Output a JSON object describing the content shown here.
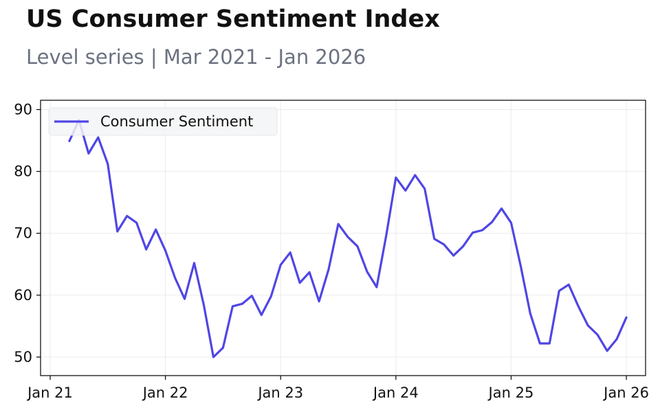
{
  "title": "US Consumer Sentiment Index",
  "subtitle": "Level series | Mar 2021 - Jan 2026",
  "chart_data": {
    "type": "line",
    "title": "US Consumer Sentiment Index",
    "subtitle": "Level series | Mar 2021 - Jan 2026",
    "xlabel": "",
    "ylabel": "",
    "x_ticks": [
      {
        "label": "Jan 21",
        "date": "2021-01"
      },
      {
        "label": "Jan 22",
        "date": "2022-01"
      },
      {
        "label": "Jan 23",
        "date": "2023-01"
      },
      {
        "label": "Jan 24",
        "date": "2024-01"
      },
      {
        "label": "Jan 25",
        "date": "2025-01"
      },
      {
        "label": "Jan 26",
        "date": "2026-01"
      }
    ],
    "y_ticks": [
      50,
      60,
      70,
      80,
      90
    ],
    "xlim": [
      "2020-12",
      "2026-03"
    ],
    "ylim": [
      47,
      91.5
    ],
    "grid": true,
    "legend": "top-left",
    "series": [
      {
        "name": "Consumer Sentiment",
        "color": "#4f46e5",
        "x": [
          "2021-03",
          "2021-04",
          "2021-05",
          "2021-06",
          "2021-07",
          "2021-08",
          "2021-09",
          "2021-10",
          "2021-11",
          "2021-12",
          "2022-01",
          "2022-02",
          "2022-03",
          "2022-04",
          "2022-05",
          "2022-06",
          "2022-07",
          "2022-08",
          "2022-09",
          "2022-10",
          "2022-11",
          "2022-12",
          "2023-01",
          "2023-02",
          "2023-03",
          "2023-04",
          "2023-05",
          "2023-06",
          "2023-07",
          "2023-08",
          "2023-09",
          "2023-10",
          "2023-11",
          "2023-12",
          "2024-01",
          "2024-02",
          "2024-03",
          "2024-04",
          "2024-05",
          "2024-06",
          "2024-07",
          "2024-08",
          "2024-09",
          "2024-10",
          "2024-11",
          "2024-12",
          "2025-01",
          "2025-02",
          "2025-03",
          "2025-04",
          "2025-05",
          "2025-06",
          "2025-07",
          "2025-08",
          "2025-09",
          "2025-10",
          "2025-11",
          "2025-12",
          "2026-01"
        ],
        "y": [
          84.9,
          88.3,
          82.9,
          85.5,
          81.2,
          70.3,
          72.8,
          71.7,
          67.4,
          70.6,
          67.2,
          62.8,
          59.4,
          65.2,
          58.4,
          50.0,
          51.5,
          58.2,
          58.6,
          59.9,
          56.8,
          59.8,
          64.9,
          66.9,
          62.0,
          63.7,
          59.0,
          64.2,
          71.5,
          69.4,
          67.9,
          63.8,
          61.3,
          69.7,
          79.0,
          76.9,
          79.4,
          77.2,
          69.1,
          68.2,
          66.4,
          67.9,
          70.1,
          70.5,
          71.8,
          74.0,
          71.7,
          64.7,
          57.0,
          52.2,
          52.2,
          60.7,
          61.7,
          58.2,
          55.1,
          53.6,
          51.0,
          52.9,
          56.4
        ]
      }
    ]
  }
}
